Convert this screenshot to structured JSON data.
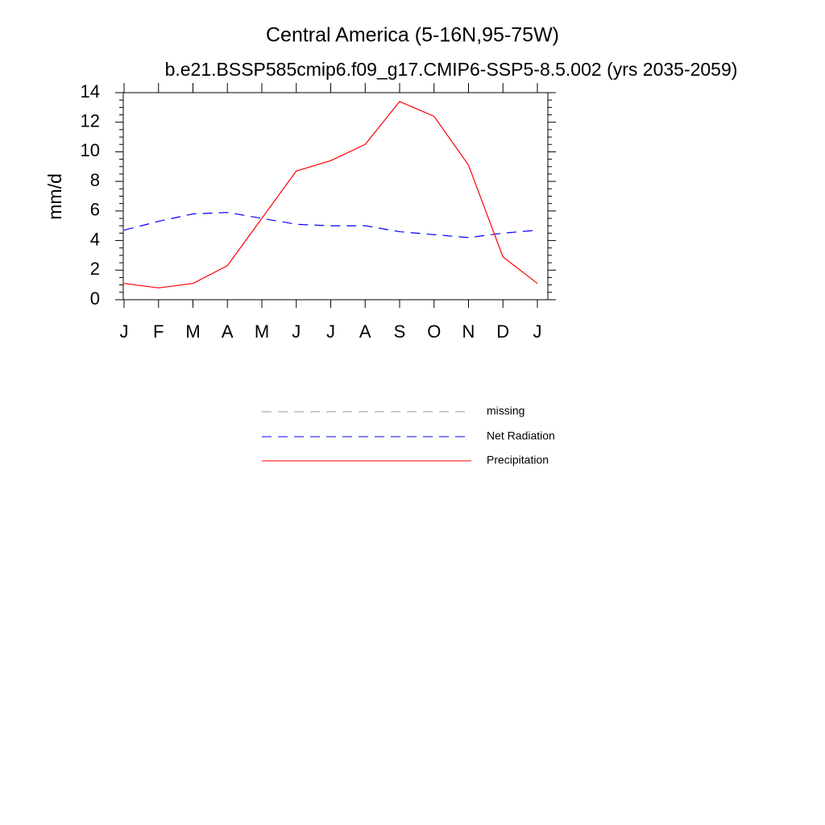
{
  "chart_data": {
    "type": "line",
    "title": "Central America (5-16N,95-75W)",
    "subtitle": "b.e21.BSSP585cmip6.f09_g17.CMIP6-SSP5-8.5.002 (yrs 2035-2059)",
    "y_label": "mm/d",
    "categories": [
      "J",
      "F",
      "M",
      "A",
      "M",
      "J",
      "J",
      "A",
      "S",
      "O",
      "N",
      "D",
      "J"
    ],
    "series": [
      {
        "name": "missing",
        "color": "#999999",
        "dash": "dashed",
        "values": [
          null,
          null,
          null,
          null,
          null,
          null,
          null,
          null,
          null,
          null,
          null,
          null,
          null
        ]
      },
      {
        "name": "Net Radiation",
        "color": "#0000ff",
        "dash": "dashed",
        "values": [
          4.7,
          5.3,
          5.8,
          5.9,
          5.5,
          5.1,
          5.0,
          5.0,
          4.6,
          4.4,
          4.2,
          4.5,
          4.7
        ]
      },
      {
        "name": "Precipitation",
        "color": "#ff0000",
        "dash": "solid",
        "values": [
          1.1,
          0.8,
          1.1,
          2.3,
          5.5,
          8.7,
          9.4,
          10.5,
          13.4,
          12.4,
          9.1,
          2.9,
          1.1
        ]
      }
    ],
    "ylim": [
      0,
      14
    ],
    "yticks": [
      0,
      2,
      4,
      6,
      8,
      10,
      12,
      14
    ],
    "grid": false
  }
}
